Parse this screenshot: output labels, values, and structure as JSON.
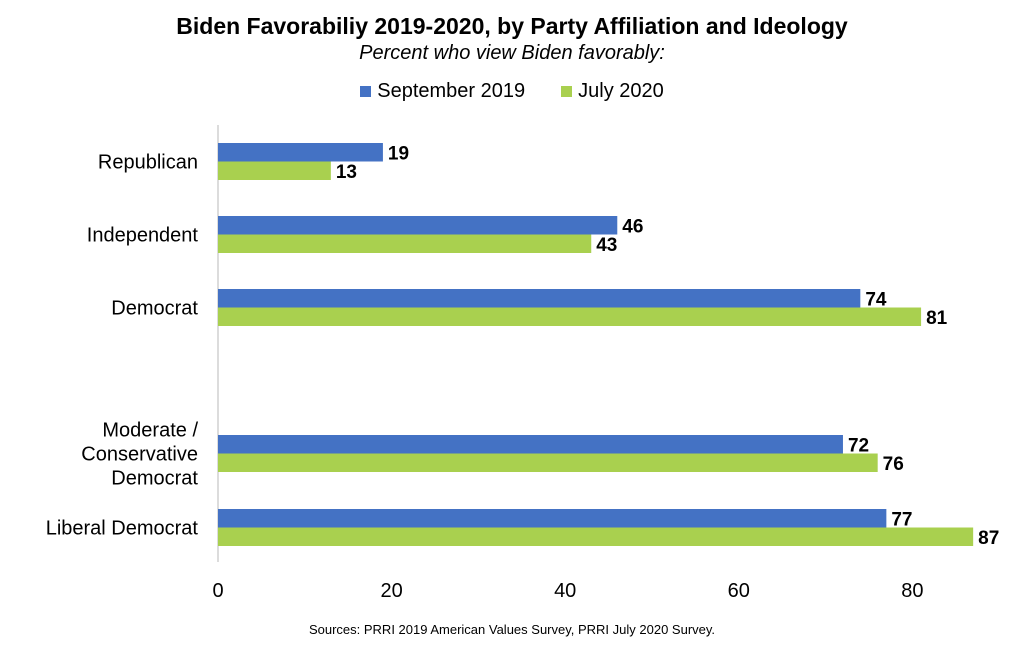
{
  "chart_data": {
    "type": "bar",
    "orientation": "horizontal",
    "title": "Biden Favorabiliy 2019-2020, by Party Affiliation and Ideology",
    "subtitle": "Percent who view Biden favorably:",
    "categories": [
      "Republican",
      "Independent",
      "Democrat",
      "Moderate / Conservative Democrat",
      "Liberal Democrat"
    ],
    "category_lines": [
      [
        "Republican"
      ],
      [
        "Independent"
      ],
      [
        "Democrat"
      ],
      [
        "Moderate /",
        "Conservative",
        "Democrat"
      ],
      [
        "Liberal Democrat"
      ]
    ],
    "series": [
      {
        "name": "September 2019",
        "color": "#4472C4",
        "values": [
          19,
          46,
          74,
          72,
          77
        ]
      },
      {
        "name": "July 2020",
        "color": "#A9D04F",
        "values": [
          13,
          43,
          81,
          76,
          87
        ]
      }
    ],
    "xlim": [
      0,
      90
    ],
    "xticks": [
      0,
      20,
      40,
      60,
      80
    ],
    "grid": false,
    "legend_position": "top",
    "source": "Sources: PRRI 2019 American Values Survey, PRRI July 2020 Survey."
  }
}
